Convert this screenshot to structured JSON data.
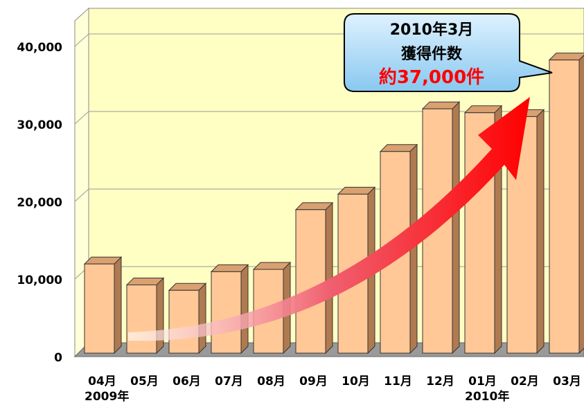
{
  "chart_data": {
    "type": "bar3d",
    "categories": [
      "04月",
      "05月",
      "06月",
      "07月",
      "08月",
      "09月",
      "10月",
      "11月",
      "12月",
      "01月",
      "02月",
      "03月"
    ],
    "values": [
      11500,
      8800,
      8100,
      10500,
      10800,
      18500,
      20500,
      26000,
      31500,
      31000,
      30500,
      37800
    ],
    "color": "#ffc896",
    "ylim": [
      0,
      40000
    ],
    "yticks": [
      0,
      {
        "value": 10000,
        "label": "10,000"
      },
      {
        "value": 20000,
        "label": "20,000"
      },
      {
        "value": 30000,
        "label": "30,000"
      },
      {
        "value": 40000,
        "label": "40,000"
      }
    ],
    "grid": true,
    "year_labels": [
      "2009年",
      "2010年"
    ],
    "callout": [
      "2010年3月",
      "獲得件数",
      "約37,000件"
    ]
  }
}
